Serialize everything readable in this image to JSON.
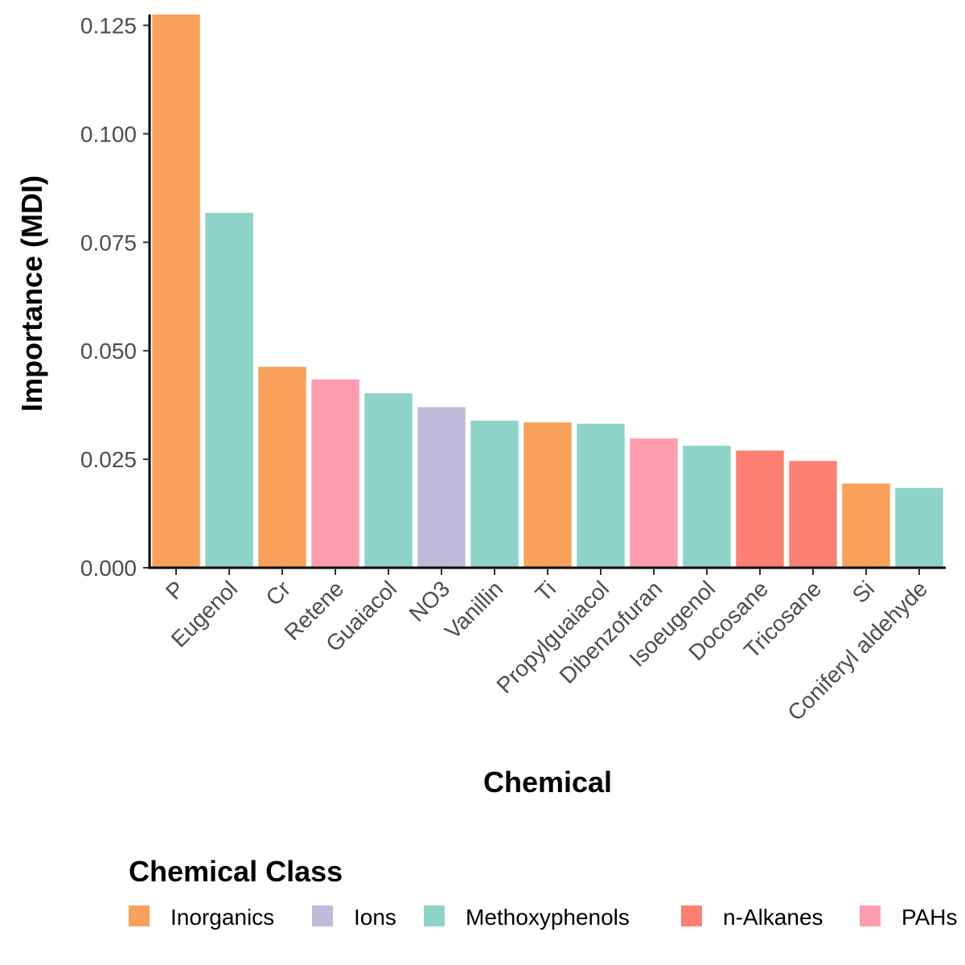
{
  "chart_data": {
    "type": "bar",
    "title": "",
    "xlabel": "Chemical",
    "ylabel": "Importance (MDI)",
    "ylim": [
      0,
      0.1275
    ],
    "yticks": [
      0.0,
      0.025,
      0.05,
      0.075,
      0.1,
      0.125
    ],
    "ytick_labels": [
      "0.000",
      "0.025",
      "0.050",
      "0.075",
      "0.100",
      "0.125"
    ],
    "grid": false,
    "legend_position": "bottom",
    "legend_title": "Chemical Class",
    "classes": [
      {
        "name": "Inorganics",
        "color": "#F9A15A"
      },
      {
        "name": "Ions",
        "color": "#BEBADA"
      },
      {
        "name": "Methoxyphenols",
        "color": "#8DD3C7"
      },
      {
        "name": "n-Alkanes",
        "color": "#FB8072"
      },
      {
        "name": "PAHs",
        "color": "#FF9DAE"
      }
    ],
    "categories": [
      "P",
      "Eugenol",
      "Cr",
      "Retene",
      "Guaiacol",
      "NO3",
      "Vanillin",
      "Ti",
      "Propylguaiacol",
      "Dibenzofuran",
      "Isoeugenol",
      "Docosane",
      "Tricosane",
      "Si",
      "Coniferyl aldehyde"
    ],
    "values": [
      0.1276,
      0.0818,
      0.0463,
      0.0434,
      0.0402,
      0.037,
      0.0339,
      0.0335,
      0.0332,
      0.0298,
      0.0281,
      0.027,
      0.0246,
      0.0194,
      0.0184
    ],
    "value_classes": [
      "Inorganics",
      "Methoxyphenols",
      "Inorganics",
      "PAHs",
      "Methoxyphenols",
      "Ions",
      "Methoxyphenols",
      "Inorganics",
      "Methoxyphenols",
      "PAHs",
      "Methoxyphenols",
      "n-Alkanes",
      "n-Alkanes",
      "Inorganics",
      "Methoxyphenols"
    ]
  }
}
